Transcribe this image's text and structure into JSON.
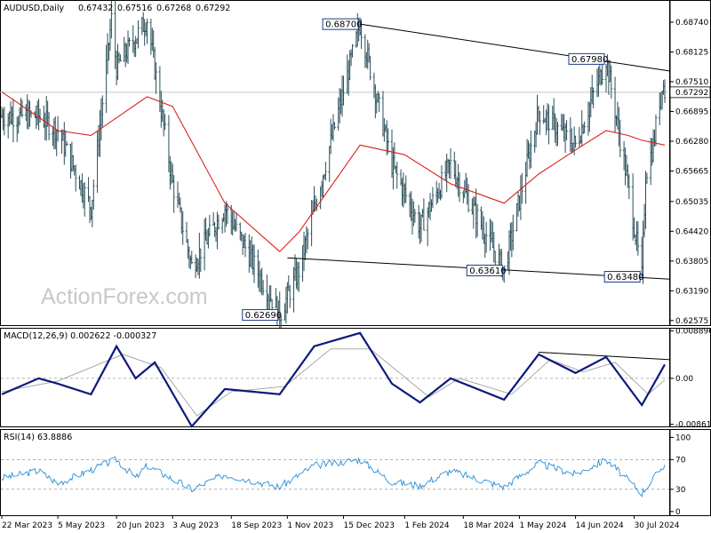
{
  "chart_data": [
    {
      "type": "candlestick",
      "title": "AUDUSD,Daily",
      "ohlc_readout": [
        "0.67432",
        "0.67516",
        "0.67268",
        "0.67292"
      ],
      "last_price_label": "0.67292",
      "watermark": "ActionForex.com",
      "ylim": [
        0.6248,
        0.6918
      ],
      "y_ticks": [
        "0.68740",
        "0.68125",
        "0.67510",
        "0.66895",
        "0.66280",
        "0.65665",
        "0.65035",
        "0.64420",
        "0.63805",
        "0.63190",
        "0.62575"
      ],
      "x_ticks": [
        "22 Mar 2023",
        "5 May 2023",
        "20 Jun 2023",
        "3 Aug 2023",
        "18 Sep 2023",
        "1 Nov 2023",
        "15 Dec 2023",
        "1 Feb 2024",
        "18 Mar 2024",
        "1 May 2024",
        "14 Jun 2024",
        "30 Jul 2024"
      ],
      "key_points": [
        {
          "date": "2023-03-22",
          "value": 0.668
        },
        {
          "date": "2023-04-20",
          "value": 0.668
        },
        {
          "date": "2023-05-05",
          "value": 0.665
        },
        {
          "date": "2023-05-31",
          "value": 0.649
        },
        {
          "date": "2023-06-16",
          "value": 0.688
        },
        {
          "date": "2023-06-20",
          "value": 0.678
        },
        {
          "date": "2023-07-14",
          "value": 0.688
        },
        {
          "date": "2023-08-03",
          "value": 0.654
        },
        {
          "date": "2023-08-18",
          "value": 0.637
        },
        {
          "date": "2023-09-13",
          "value": 0.649
        },
        {
          "date": "2023-10-26",
          "value": 0.627
        },
        {
          "date": "2023-11-10",
          "value": 0.636
        },
        {
          "date": "2023-12-28",
          "value": 0.687
        },
        {
          "date": "2024-01-22",
          "value": 0.658
        },
        {
          "date": "2024-02-13",
          "value": 0.645
        },
        {
          "date": "2024-03-08",
          "value": 0.658
        },
        {
          "date": "2024-04-19",
          "value": 0.6361
        },
        {
          "date": "2024-05-16",
          "value": 0.669
        },
        {
          "date": "2024-06-14",
          "value": 0.662
        },
        {
          "date": "2024-07-08",
          "value": 0.6798
        },
        {
          "date": "2024-07-25",
          "value": 0.654
        },
        {
          "date": "2024-08-05",
          "value": 0.6348
        },
        {
          "date": "2024-08-08",
          "value": 0.656
        },
        {
          "date": "2024-08-14",
          "value": 0.662
        },
        {
          "date": "2024-08-21",
          "value": 0.6752
        },
        {
          "date": "2024-08-23",
          "value": 0.6729
        }
      ],
      "ma_points": [
        {
          "date": "2023-03-22",
          "value": 0.673
        },
        {
          "date": "2023-05-05",
          "value": 0.665
        },
        {
          "date": "2023-05-31",
          "value": 0.664
        },
        {
          "date": "2023-07-14",
          "value": 0.672
        },
        {
          "date": "2023-08-03",
          "value": 0.67
        },
        {
          "date": "2023-09-13",
          "value": 0.65
        },
        {
          "date": "2023-10-26",
          "value": 0.64
        },
        {
          "date": "2023-11-10",
          "value": 0.644
        },
        {
          "date": "2023-12-28",
          "value": 0.662
        },
        {
          "date": "2024-02-01",
          "value": 0.66
        },
        {
          "date": "2024-03-08",
          "value": 0.654
        },
        {
          "date": "2024-04-19",
          "value": 0.65
        },
        {
          "date": "2024-05-16",
          "value": 0.656
        },
        {
          "date": "2024-06-14",
          "value": 0.661
        },
        {
          "date": "2024-07-08",
          "value": 0.665
        },
        {
          "date": "2024-07-25",
          "value": 0.664
        },
        {
          "date": "2024-08-05",
          "value": 0.663
        },
        {
          "date": "2024-08-23",
          "value": 0.662
        }
      ],
      "annotations": [
        {
          "label": "0.68700",
          "date": "2023-12-28",
          "value": 0.687
        },
        {
          "label": "0.67980",
          "date": "2024-07-08",
          "value": 0.6798
        },
        {
          "label": "0.62690",
          "date": "2023-10-26",
          "value": 0.6269
        },
        {
          "label": "0.63610",
          "date": "2024-04-19",
          "value": 0.6361
        },
        {
          "label": "0.63480",
          "date": "2024-08-05",
          "value": 0.6348
        }
      ],
      "trendlines": [
        {
          "from": {
            "date": "2023-12-28",
            "value": 0.687
          },
          "to": {
            "date": "2024-08-23",
            "value": 0.6773
          }
        },
        {
          "from": {
            "date": "2023-11-01",
            "value": 0.6387
          },
          "to": {
            "date": "2024-08-23",
            "value": 0.6343
          }
        }
      ]
    },
    {
      "type": "line",
      "title": "MACD(12,26,9) 0.002622 -0.000327",
      "ylim": [
        -0.009,
        0.0093
      ],
      "y_ticks": [
        "0.008896",
        "0.00",
        "-0.008612"
      ],
      "macd_points": [
        {
          "date": "2023-03-22",
          "value": -0.003
        },
        {
          "date": "2023-04-20",
          "value": 0.0
        },
        {
          "date": "2023-05-05",
          "value": -0.001
        },
        {
          "date": "2023-05-31",
          "value": -0.003
        },
        {
          "date": "2023-06-20",
          "value": 0.006
        },
        {
          "date": "2023-07-05",
          "value": 0.0
        },
        {
          "date": "2023-07-20",
          "value": 0.003
        },
        {
          "date": "2023-08-18",
          "value": -0.009
        },
        {
          "date": "2023-09-13",
          "value": -0.002
        },
        {
          "date": "2023-10-26",
          "value": -0.003
        },
        {
          "date": "2023-11-22",
          "value": 0.006
        },
        {
          "date": "2023-12-28",
          "value": 0.0085
        },
        {
          "date": "2024-01-22",
          "value": -0.001
        },
        {
          "date": "2024-02-13",
          "value": -0.0045
        },
        {
          "date": "2024-03-08",
          "value": 0.0
        },
        {
          "date": "2024-04-19",
          "value": -0.004
        },
        {
          "date": "2024-05-16",
          "value": 0.0045
        },
        {
          "date": "2024-06-14",
          "value": 0.001
        },
        {
          "date": "2024-07-08",
          "value": 0.004
        },
        {
          "date": "2024-08-05",
          "value": -0.005
        },
        {
          "date": "2024-08-23",
          "value": 0.0026
        }
      ],
      "signal_points": [
        {
          "date": "2023-03-22",
          "value": -0.0025
        },
        {
          "date": "2023-05-05",
          "value": -0.0005
        },
        {
          "date": "2023-06-25",
          "value": 0.0045
        },
        {
          "date": "2023-07-25",
          "value": 0.002
        },
        {
          "date": "2023-08-22",
          "value": -0.007
        },
        {
          "date": "2023-09-18",
          "value": -0.0025
        },
        {
          "date": "2023-10-30",
          "value": -0.0015
        },
        {
          "date": "2023-12-05",
          "value": 0.0055
        },
        {
          "date": "2024-01-05",
          "value": 0.0055
        },
        {
          "date": "2024-02-20",
          "value": -0.0035
        },
        {
          "date": "2024-03-15",
          "value": 0.0
        },
        {
          "date": "2024-04-25",
          "value": -0.003
        },
        {
          "date": "2024-05-25",
          "value": 0.0035
        },
        {
          "date": "2024-06-20",
          "value": 0.0012
        },
        {
          "date": "2024-07-15",
          "value": 0.003
        },
        {
          "date": "2024-08-10",
          "value": -0.003
        },
        {
          "date": "2024-08-23",
          "value": -0.0003
        }
      ],
      "trendline": {
        "from": {
          "date": "2024-05-16",
          "value": 0.0049
        },
        "to": {
          "date": "2024-08-23",
          "value": 0.0035
        }
      }
    },
    {
      "type": "line",
      "title": "RSI(14) 63.8886",
      "ylim": [
        -5,
        110
      ],
      "y_ticks": [
        "100",
        "70",
        "30",
        "0"
      ],
      "levels": [
        70,
        30
      ],
      "rsi_points": [
        {
          "date": "2023-03-22",
          "value": 45
        },
        {
          "date": "2023-04-20",
          "value": 55
        },
        {
          "date": "2023-05-05",
          "value": 38
        },
        {
          "date": "2023-06-20",
          "value": 70
        },
        {
          "date": "2023-07-05",
          "value": 45
        },
        {
          "date": "2023-07-14",
          "value": 62
        },
        {
          "date": "2023-08-18",
          "value": 30
        },
        {
          "date": "2023-09-13",
          "value": 50
        },
        {
          "date": "2023-10-26",
          "value": 33
        },
        {
          "date": "2023-11-22",
          "value": 62
        },
        {
          "date": "2023-12-28",
          "value": 70
        },
        {
          "date": "2024-01-22",
          "value": 40
        },
        {
          "date": "2024-02-13",
          "value": 35
        },
        {
          "date": "2024-03-08",
          "value": 55
        },
        {
          "date": "2024-04-19",
          "value": 33
        },
        {
          "date": "2024-05-16",
          "value": 65
        },
        {
          "date": "2024-06-14",
          "value": 50
        },
        {
          "date": "2024-07-08",
          "value": 70
        },
        {
          "date": "2024-08-05",
          "value": 25
        },
        {
          "date": "2024-08-23",
          "value": 64
        }
      ]
    }
  ]
}
